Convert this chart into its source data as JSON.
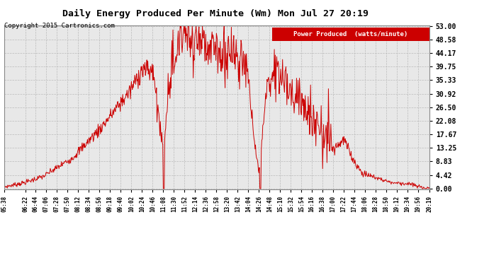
{
  "title": "Daily Energy Produced Per Minute (Wm) Mon Jul 27 20:19",
  "copyright": "Copyright 2015 Cartronics.com",
  "legend_label": "Power Produced  (watts/minute)",
  "legend_bg": "#cc0000",
  "legend_fg": "#ffffff",
  "line_color": "#cc0000",
  "bg_color": "#ffffff",
  "plot_bg": "#e8e8e8",
  "grid_color": "#bbbbbb",
  "ymax": 53.0,
  "yticks": [
    0.0,
    4.42,
    8.83,
    13.25,
    17.67,
    22.08,
    26.5,
    30.92,
    35.33,
    39.75,
    44.17,
    48.58,
    53.0
  ],
  "xtick_labels": [
    "05:38",
    "06:22",
    "06:44",
    "07:06",
    "07:28",
    "07:50",
    "08:12",
    "08:34",
    "08:56",
    "09:18",
    "09:40",
    "10:02",
    "10:24",
    "10:46",
    "11:08",
    "11:30",
    "11:52",
    "12:14",
    "12:36",
    "12:58",
    "13:20",
    "13:42",
    "14:04",
    "14:26",
    "14:48",
    "15:10",
    "15:32",
    "15:54",
    "16:16",
    "16:38",
    "17:00",
    "17:22",
    "17:44",
    "18:06",
    "18:28",
    "18:50",
    "19:12",
    "19:34",
    "19:56",
    "20:19"
  ]
}
